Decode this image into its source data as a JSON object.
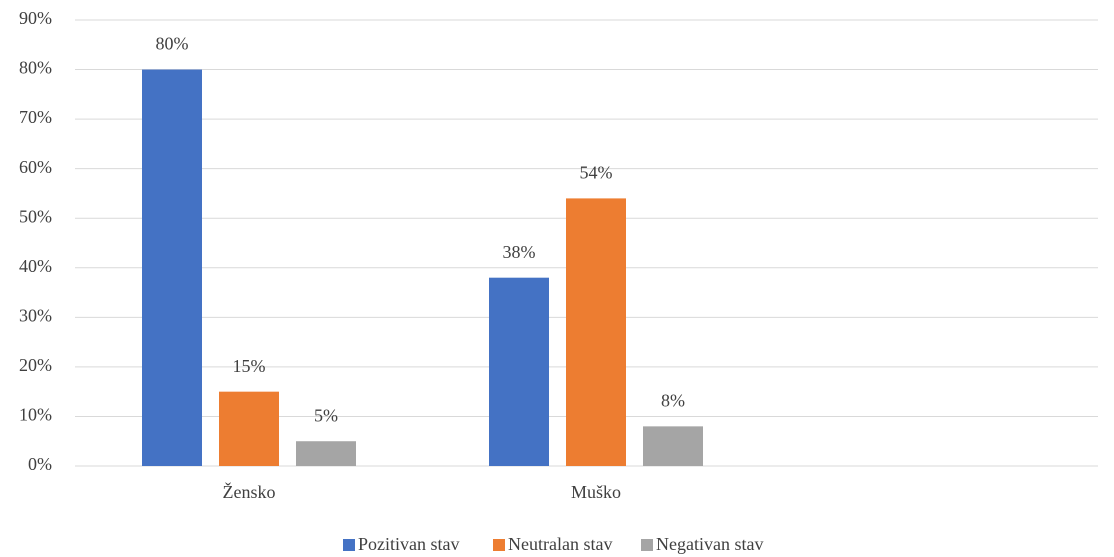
{
  "chart_data": {
    "type": "bar",
    "categories": [
      "Žensko",
      "Muško",
      null
    ],
    "series": [
      {
        "name": "Pozitivan stav",
        "color": "#4472c4",
        "values": [
          80,
          38,
          null
        ],
        "value_labels": [
          "80%",
          "38%",
          null
        ]
      },
      {
        "name": "Neutralan stav",
        "color": "#ed7d31",
        "values": [
          15,
          54,
          null
        ],
        "value_labels": [
          "15%",
          "54%",
          null
        ]
      },
      {
        "name": "Negativan stav",
        "color": "#a5a5a5",
        "values": [
          5,
          8,
          null
        ],
        "value_labels": [
          "5%",
          "8%",
          null
        ]
      }
    ],
    "ylim": [
      0,
      90
    ],
    "yticks": [
      {
        "value": 0,
        "label": "0%"
      },
      {
        "value": 10,
        "label": "10%"
      },
      {
        "value": 20,
        "label": "20%"
      },
      {
        "value": 30,
        "label": "30%"
      },
      {
        "value": 40,
        "label": "40%"
      },
      {
        "value": 50,
        "label": "50%"
      },
      {
        "value": 60,
        "label": "60%"
      },
      {
        "value": 70,
        "label": "70%"
      },
      {
        "value": 80,
        "label": "80%"
      },
      {
        "value": 90,
        "label": "90%"
      }
    ],
    "grid": true,
    "legend": "bottom"
  }
}
